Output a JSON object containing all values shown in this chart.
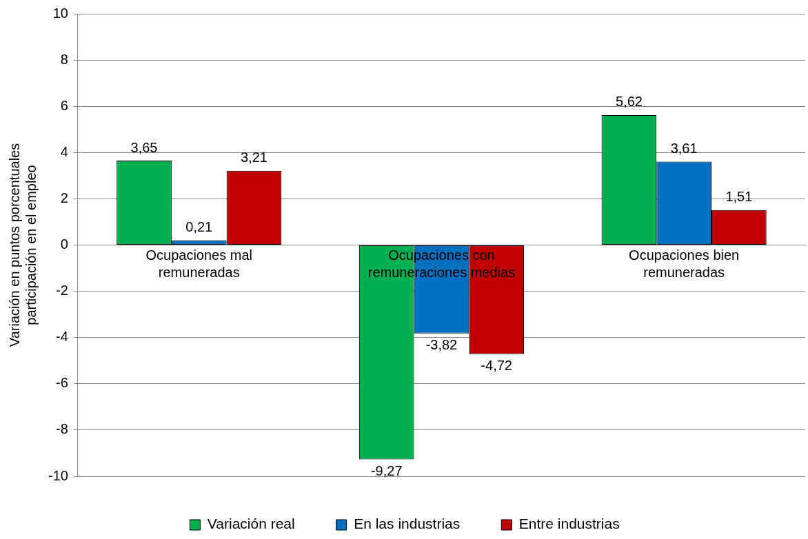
{
  "chart_data": {
    "type": "bar",
    "ylabel": "Variación en puntos porcentuales participación en el empleo",
    "categories": [
      "Ocupaciones mal remuneradas",
      "Ocupaciones con remuneraciones medias",
      "Ocupaciones bien remuneradas"
    ],
    "series": [
      {
        "name": "Variación real",
        "color": "#00b050",
        "values": [
          3.65,
          -9.27,
          5.62
        ],
        "value_labels": [
          "3,65",
          "-9,27",
          "5,62"
        ]
      },
      {
        "name": "En las industrias",
        "color": "#0070c0",
        "values": [
          0.21,
          -3.82,
          3.61
        ],
        "value_labels": [
          "0,21",
          "-3,82",
          "3,61"
        ]
      },
      {
        "name": "Entre industrias",
        "color": "#c00000",
        "values": [
          3.21,
          -4.72,
          1.51
        ],
        "value_labels": [
          "3,21",
          "-4,72",
          "1,51"
        ]
      }
    ],
    "ylim": [
      -10,
      10
    ],
    "yticks": [
      -10,
      -8,
      -6,
      -4,
      -2,
      0,
      2,
      4,
      6,
      8,
      10
    ],
    "grid": "y",
    "legend": "bottom"
  }
}
